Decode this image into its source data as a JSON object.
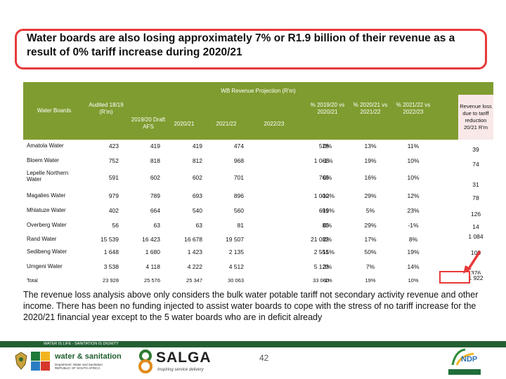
{
  "slide": {
    "title": "Water boards are also losing approximately 7% or R1.9 billion of their revenue as a result of 0% tariff increase during 2020/21",
    "note": "The revenue loss analysis above only considers the bulk water potable tariff not secondary activity revenue and other income. There has been no funding injected to assist water boards to cope with the stress of no tariff increase for the 2020/21 financial year except to the 5 water boards who are in deficit already",
    "page_number": "42"
  },
  "table": {
    "band_title": "WB Revenue Projection (R'm)",
    "headers": {
      "water_boards": "Water Boards",
      "audited": "Audited 18/19 (R'm)",
      "draft_afs": "2019/20 Draft AFS",
      "y2021": "2020/21",
      "y2122": "2021/22",
      "y2223": "2022/23",
      "p1": "% 2019/20 vs 2020/21",
      "p2": "% 2020/21 vs 2021/22",
      "p3": "% 2021/22 vs 2022/23",
      "loss": "Revenue loss due to tariff reduction 20/21 R'm"
    },
    "rows": [
      {
        "name": "Amatola Water",
        "a": "423",
        "b": "419",
        "c": "419",
        "d": "474",
        "e": "528",
        "p1": "0%",
        "p2": "13%",
        "p3": "11%",
        "loss": "39"
      },
      {
        "name": "Bloem Water",
        "a": "752",
        "b": "818",
        "c": "812",
        "d": "968",
        "e": "1 066",
        "p1": "-1%",
        "p2": "19%",
        "p3": "10%",
        "loss": "74"
      },
      {
        "name": "Lepelle Northern Water",
        "a": "591",
        "b": "602",
        "c": "602",
        "d": "701",
        "e": "769",
        "p1": "0%",
        "p2": "16%",
        "p3": "10%",
        "loss": "31"
      },
      {
        "name": "Magalies Water",
        "a": "979",
        "b": "789",
        "c": "693",
        "d": "896",
        "e": "1 000",
        "p1": "-12%",
        "p2": "29%",
        "p3": "12%",
        "loss": "78"
      },
      {
        "name": "Mhlatuze Water",
        "a": "402",
        "b": "664",
        "c": "540",
        "d": "560",
        "e": "691",
        "p1": "-19%",
        "p2": "5%",
        "p3": "23%",
        "loss": "126"
      },
      {
        "name": "Overberg Water",
        "a": "56",
        "b": "63",
        "c": "63",
        "d": "81",
        "e": "80",
        "p1": "0%",
        "p2": "29%",
        "p3": "-1%",
        "loss": "14"
      },
      {
        "name": "Rand Water",
        "a": "15 539",
        "b": "16 423",
        "c": "16 678",
        "d": "19 507",
        "e": "21 082",
        "p1": "2%",
        "p2": "17%",
        "p3": "8%",
        "loss": "1 084"
      },
      {
        "name": "Sedibeng Water",
        "a": "1 648",
        "b": "1 680",
        "c": "1 423",
        "d": "2 135",
        "e": "2 551",
        "p1": "-15%",
        "p2": "50%",
        "p3": "19%",
        "loss": "100"
      },
      {
        "name": "Umgeni Water",
        "a": "3 538",
        "b": "4 118",
        "c": "4 222",
        "d": "4 512",
        "e": "5 123",
        "p1": "3%",
        "p2": "7%",
        "p3": "14%",
        "loss": "376"
      },
      {
        "name": "Total",
        "a": "23 928",
        "b": "25 576",
        "c": "25 347",
        "d": "30 063",
        "e": "33 060",
        "p1": "-1%",
        "p2": "19%",
        "p3": "10%",
        "loss": "1 922"
      }
    ]
  },
  "footer": {
    "strip_text": "WATER IS LIFE - SANITATION IS DIGNITY",
    "dws_line1": "water & sanitation",
    "dws_line2": "Department: Water and Sanitation REPUBLIC OF SOUTH AFRICA",
    "salga_name": "SALGA",
    "salga_tagline": "Inspiring service delivery",
    "ndp_label": "NDP"
  },
  "colors": {
    "header_green": "#7f9c30",
    "highlight_red": "#e8393a",
    "footer_green": "#245f33"
  }
}
